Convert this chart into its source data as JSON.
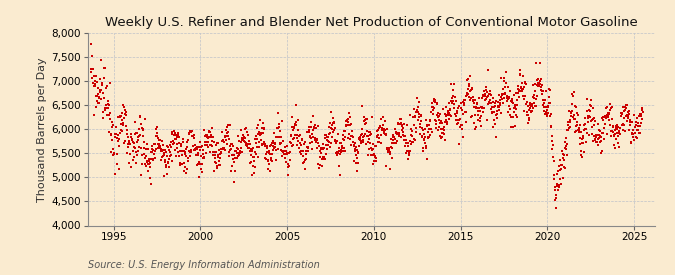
{
  "title": "Weekly U.S. Refiner and Blender Net Production of Conventional Motor Gasoline",
  "ylabel": "Thousand Barrels per Day",
  "source_text": "Source: U.S. Energy Information Administration",
  "ylim": [
    4000,
    8000
  ],
  "yticks": [
    4000,
    4500,
    5000,
    5500,
    6000,
    6500,
    7000,
    7500,
    8000
  ],
  "xlim_start": 1993.5,
  "xlim_end": 2026.2,
  "xticks": [
    1995,
    2000,
    2005,
    2010,
    2015,
    2020,
    2025
  ],
  "marker_color": "#cc0000",
  "marker_size": 2.2,
  "background_color": "#faebd0",
  "grid_color": "#b0b8c8",
  "title_fontsize": 9.5,
  "label_fontsize": 8,
  "tick_fontsize": 7.5,
  "source_fontsize": 7
}
